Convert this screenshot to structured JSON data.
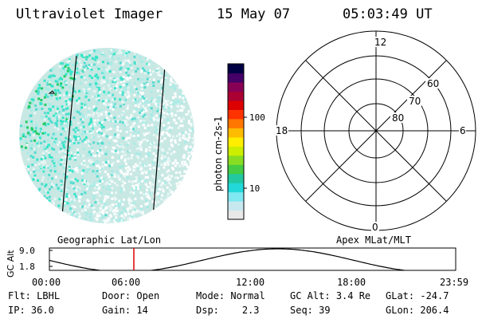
{
  "header": {
    "instrument": "Ultraviolet Imager",
    "date": "15 May 07",
    "time": "05:03:49 UT"
  },
  "imager": {
    "caption": "Geographic Lat/Lon",
    "dominant_color": "#c8e8e4",
    "bright_color": "#33e6c8",
    "peak_color": "#22cc66"
  },
  "colorbar": {
    "label": "photon cm-2s-1",
    "tick_labels": [
      "100",
      "10"
    ],
    "scale": "log",
    "colors": [
      "#e8e8e8",
      "#c8e8f0",
      "#7fe8f0",
      "#22d8d8",
      "#22c8a0",
      "#44cc44",
      "#88dd22",
      "#ccee00",
      "#ffee00",
      "#ffbb00",
      "#ff7700",
      "#ff3300",
      "#dd0000",
      "#aa0033",
      "#880055",
      "#440066",
      "#000044"
    ]
  },
  "polar": {
    "caption": "Apex MLat/MLT",
    "mlt_labels": {
      "top": "12",
      "left": "18",
      "right": "6",
      "bottom": "0"
    },
    "lat_labels": [
      "60",
      "70",
      "80"
    ]
  },
  "alt_plot": {
    "ylabel": "GC Alt",
    "y_ticks": [
      "9.0",
      "1.8"
    ],
    "x_ticks": [
      "00:00",
      "06:00",
      "12:00",
      "18:00",
      "23:59"
    ],
    "marker_color": "#dd0000"
  },
  "status": {
    "row1": [
      {
        "label": "Flt:",
        "value": "LBHL"
      },
      {
        "label": "Door:",
        "value": "Open"
      },
      {
        "label": "Mode:",
        "value": "Normal"
      },
      {
        "label": "GC Alt:",
        "value": "3.4 Re"
      },
      {
        "label": "GLat:",
        "value": "-24.7"
      }
    ],
    "row2": [
      {
        "label": "IP:",
        "value": "36.0"
      },
      {
        "label": "Gain:",
        "value": "14"
      },
      {
        "label": "Dsp:",
        "value": "2.3"
      },
      {
        "label": "Seq:",
        "value": "39"
      },
      {
        "label": "GLon:",
        "value": "206.4"
      }
    ]
  }
}
